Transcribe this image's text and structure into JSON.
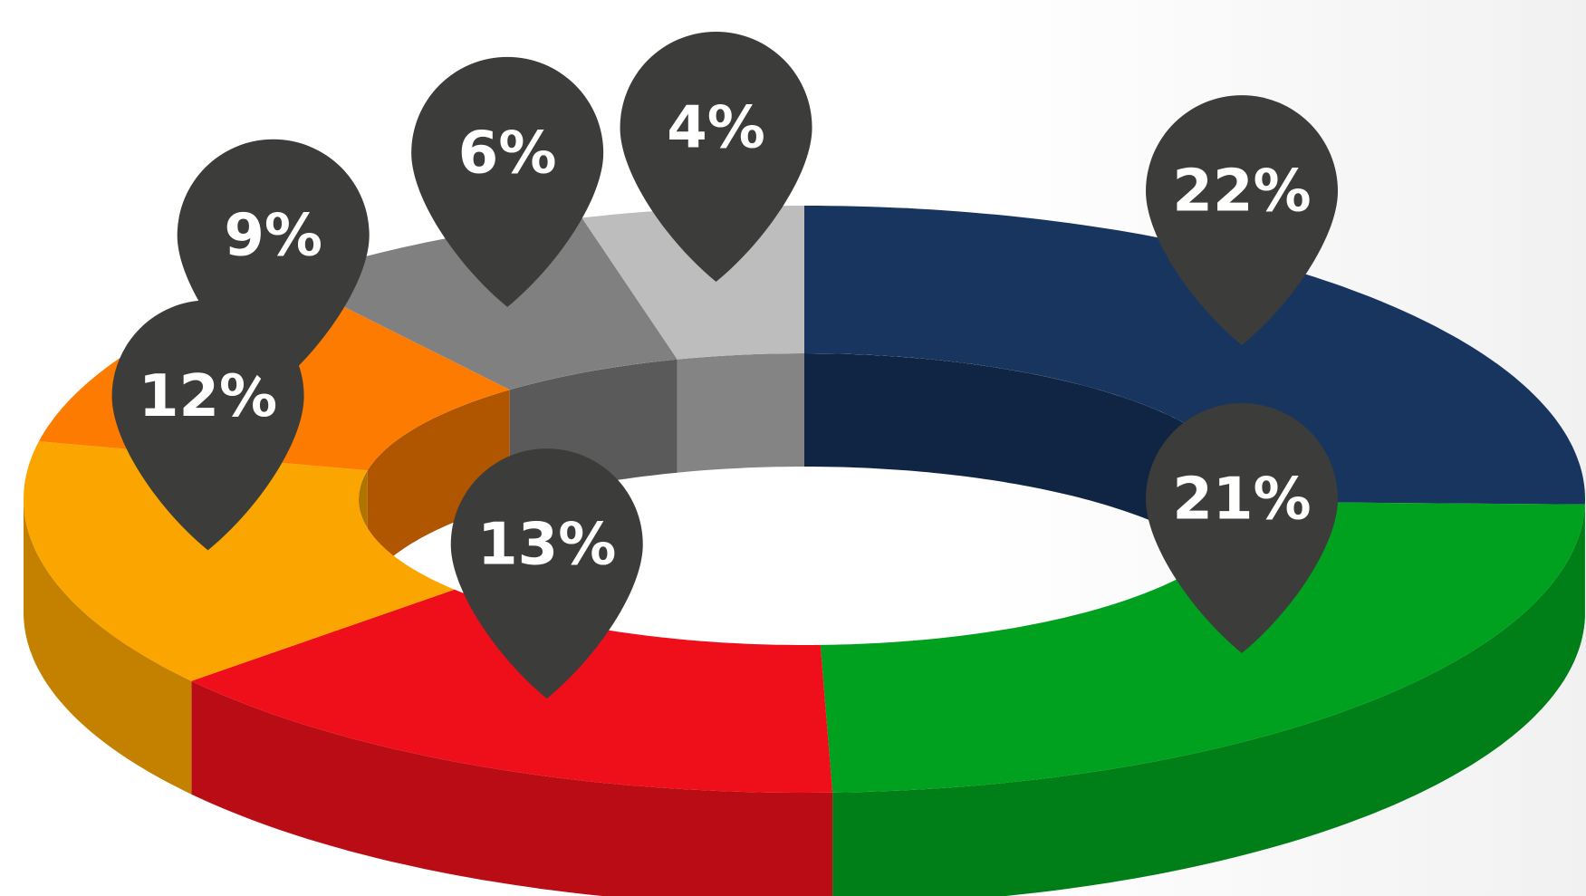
{
  "chart_data": {
    "type": "pie",
    "values": [
      22,
      21,
      13,
      12,
      9,
      6,
      4
    ],
    "value_labels": [
      "22%",
      "21%",
      "13%",
      "12%",
      "9%",
      "6%",
      "4%"
    ],
    "colors": [
      "#17355f",
      "#00a11e",
      "#ee0f1a",
      "#fba600",
      "#fd7b00",
      "#808080",
      "#bdbdbd"
    ]
  }
}
